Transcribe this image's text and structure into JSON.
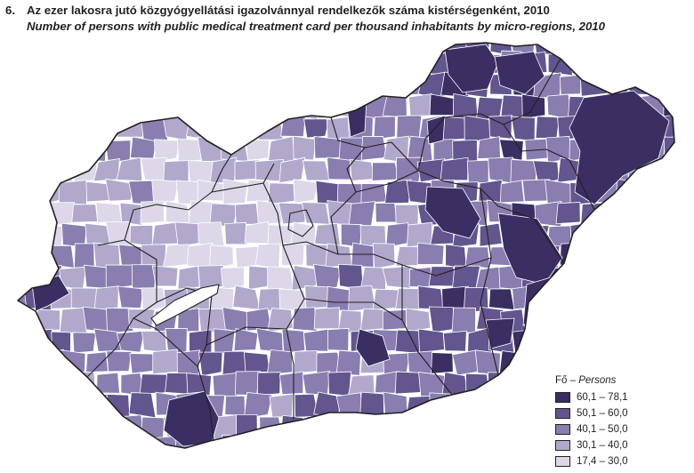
{
  "title": {
    "number": "6.",
    "hu": "Az ezer lakosra jutó közgyógyellátási igazolvánnyal rendelkezők száma kistérségenként, 2010",
    "en": "Number of persons with public medical treatment card per thousand inhabitants by micro-regions, 2010"
  },
  "legend": {
    "unit_hu": "Fő",
    "separator": " – ",
    "unit_en": "Persons",
    "classes": [
      {
        "label": "60,1 – 78,1",
        "color": "#3b2e63"
      },
      {
        "label": "50,1 – 60,0",
        "color": "#63558d"
      },
      {
        "label": "40,1 – 50,0",
        "color": "#8a7daf"
      },
      {
        "label": "30,1 – 40,0",
        "color": "#b2a8cc"
      },
      {
        "label": "17,4 – 30,0",
        "color": "#ddd7e9"
      }
    ]
  },
  "map": {
    "region": "Hungary",
    "unit_level": "micro-regions (kistérségek)",
    "boundary_color": "#ffffff",
    "county_border_color": "#231f20"
  }
}
